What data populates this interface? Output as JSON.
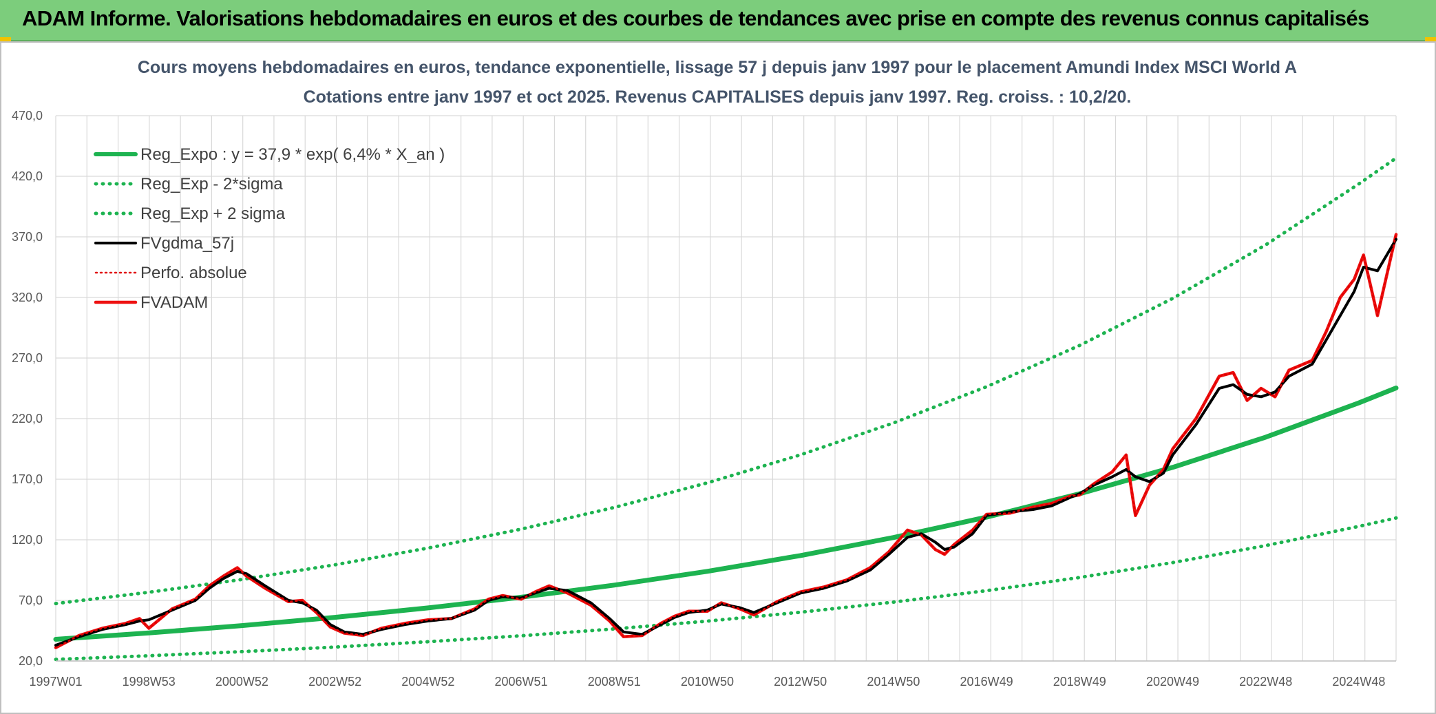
{
  "header": {
    "title": "ADAM Informe. Valorisations hebdomadaires en euros et des courbes de tendances avec prise en compte des revenus connus capitalisés"
  },
  "colors": {
    "header_bg": "#7ccd7c",
    "reg_expo": "#1db350",
    "sigma_bands": "#1db350",
    "fvgdma": "#000000",
    "perfo": "#e00000",
    "fvadam": "#ee1111",
    "grid": "#d9d9d9"
  },
  "chart_data": {
    "type": "line",
    "title": "Cours moyens hebdomadaires en euros, tendance exponentielle, lissage 57 j depuis janv 1997 pour le placement Amundi Index MSCI World A",
    "subtitle": "Cotations entre janv 1997 et oct 2025. Revenus CAPITALISES depuis janv 1997. Reg. croiss. : 10,2/20.",
    "xlabel": "",
    "ylabel": "",
    "ylim": [
      20,
      470
    ],
    "y_ticks": [
      "20,0",
      "70,0",
      "120,0",
      "170,0",
      "220,0",
      "270,0",
      "320,0",
      "370,0",
      "420,0",
      "470,0"
    ],
    "x_range": [
      1997.0,
      2025.8
    ],
    "x_ticks": [
      {
        "label": "1997W01",
        "x": 1997.0
      },
      {
        "label": "1998W53",
        "x": 1999.0
      },
      {
        "label": "2000W52",
        "x": 2001.0
      },
      {
        "label": "2002W52",
        "x": 2003.0
      },
      {
        "label": "2004W52",
        "x": 2005.0
      },
      {
        "label": "2006W51",
        "x": 2007.0
      },
      {
        "label": "2008W51",
        "x": 2009.0
      },
      {
        "label": "2010W50",
        "x": 2011.0
      },
      {
        "label": "2012W50",
        "x": 2013.0
      },
      {
        "label": "2014W50",
        "x": 2015.0
      },
      {
        "label": "2016W49",
        "x": 2017.0
      },
      {
        "label": "2018W49",
        "x": 2019.0
      },
      {
        "label": "2020W49",
        "x": 2021.0
      },
      {
        "label": "2022W48",
        "x": 2023.0
      },
      {
        "label": "2024W48",
        "x": 2025.0
      }
    ],
    "grid": true,
    "legend_position": "top-left",
    "legend": [
      "Reg_Expo : y = 37,9 * exp( 6,4% *  X_an )",
      "Reg_Exp - 2*sigma",
      "Reg_Exp + 2 sigma",
      "FVgdma_57j",
      "Perfo. absolue",
      "FVADAM"
    ],
    "series": [
      {
        "name": "Reg_Expo : y = 37,9 * exp( 6,4% *  X_an )",
        "style": "solid-thick",
        "x": [
          1997,
          1999,
          2001,
          2003,
          2005,
          2007,
          2009,
          2011,
          2013,
          2015,
          2017,
          2019,
          2021,
          2023,
          2025,
          2025.8
        ],
        "values": [
          37.9,
          43.1,
          49.2,
          56.0,
          63.8,
          72.6,
          82.6,
          94.0,
          107.0,
          121.9,
          138.7,
          158.0,
          179.8,
          204.7,
          233.0,
          245.3
        ]
      },
      {
        "name": "Reg_Exp - 2*sigma",
        "style": "dotted",
        "x": [
          1997,
          1999,
          2001,
          2003,
          2005,
          2007,
          2009,
          2011,
          2013,
          2015,
          2017,
          2019,
          2021,
          2023,
          2025,
          2025.8
        ],
        "values": [
          21.3,
          24.3,
          27.7,
          31.5,
          35.9,
          40.8,
          46.5,
          52.9,
          60.2,
          68.6,
          78.0,
          88.9,
          101.2,
          115.2,
          131.1,
          138.0
        ]
      },
      {
        "name": "Reg_Exp + 2 sigma",
        "style": "dotted",
        "x": [
          1997,
          1999,
          2001,
          2003,
          2005,
          2007,
          2009,
          2011,
          2013,
          2015,
          2017,
          2019,
          2021,
          2023,
          2025,
          2025.8
        ],
        "values": [
          67.4,
          76.7,
          87.3,
          99.4,
          113.2,
          128.8,
          146.7,
          167.0,
          190.1,
          216.4,
          246.3,
          280.4,
          319.2,
          363.4,
          413.7,
          435.0
        ]
      },
      {
        "name": "FVgdma_57j",
        "style": "solid",
        "x": [
          1997.0,
          1997.5,
          1998.0,
          1998.5,
          1998.8,
          1999.0,
          1999.5,
          2000.0,
          2000.3,
          2000.6,
          2000.9,
          2001.1,
          2001.5,
          2002.0,
          2002.3,
          2002.6,
          2002.9,
          2003.2,
          2003.6,
          2004.0,
          2004.5,
          2005.0,
          2005.5,
          2006.0,
          2006.3,
          2006.6,
          2007.0,
          2007.3,
          2007.6,
          2008.0,
          2008.5,
          2008.9,
          2009.2,
          2009.6,
          2010.0,
          2010.3,
          2010.6,
          2011.0,
          2011.3,
          2011.7,
          2012.0,
          2012.5,
          2013.0,
          2013.5,
          2014.0,
          2014.5,
          2014.9,
          2015.3,
          2015.6,
          2015.9,
          2016.1,
          2016.3,
          2016.7,
          2017.0,
          2017.5,
          2018.0,
          2018.4,
          2018.8,
          2019.0,
          2019.3,
          2019.7,
          2020.0,
          2020.2,
          2020.5,
          2020.8,
          2021.0,
          2021.5,
          2022.0,
          2022.3,
          2022.6,
          2022.9,
          2023.2,
          2023.5,
          2024.0,
          2024.3,
          2024.6,
          2024.9,
          2025.1,
          2025.4,
          2025.8
        ],
        "values": [
          33,
          40,
          46,
          50,
          53,
          54,
          62,
          70,
          80,
          88,
          94,
          92,
          82,
          70,
          68,
          62,
          50,
          44,
          42,
          46,
          50,
          53,
          55,
          62,
          70,
          73,
          72,
          76,
          80,
          78,
          68,
          55,
          44,
          42,
          50,
          56,
          60,
          62,
          67,
          64,
          60,
          68,
          76,
          80,
          86,
          95,
          108,
          122,
          125,
          118,
          112,
          114,
          125,
          140,
          143,
          145,
          148,
          155,
          158,
          165,
          172,
          178,
          172,
          168,
          175,
          190,
          215,
          245,
          248,
          240,
          238,
          242,
          255,
          265,
          285,
          305,
          325,
          345,
          342,
          368
        ]
      },
      {
        "name": "Perfo. absolue",
        "style": "dotted",
        "x": [
          1997.0,
          1997.5,
          1998.0,
          1998.5,
          1998.8,
          1999.0,
          1999.5,
          2000.0,
          2000.3,
          2000.6,
          2000.9,
          2001.1,
          2001.5,
          2002.0,
          2002.3,
          2002.6,
          2002.9,
          2003.2,
          2003.6,
          2004.0,
          2004.5,
          2005.0,
          2005.5,
          2006.0,
          2006.3,
          2006.6,
          2007.0,
          2007.3,
          2007.6,
          2008.0,
          2008.5,
          2008.9,
          2009.2,
          2009.6,
          2010.0,
          2010.3,
          2010.6,
          2011.0,
          2011.3,
          2011.7,
          2012.0,
          2012.5,
          2013.0,
          2013.5,
          2014.0,
          2014.5,
          2014.9,
          2015.3,
          2015.6,
          2015.9,
          2016.1,
          2016.3,
          2016.7,
          2017.0,
          2017.5,
          2018.0,
          2018.4,
          2018.8,
          2019.0,
          2019.3,
          2019.7,
          2020.0,
          2020.2,
          2020.5,
          2020.8,
          2021.0,
          2021.5,
          2022.0,
          2022.3,
          2022.6,
          2022.9,
          2023.2,
          2023.5,
          2024.0,
          2024.3,
          2024.6,
          2024.9,
          2025.1,
          2025.4,
          2025.8
        ],
        "values": [
          31,
          41,
          47,
          51,
          55,
          47,
          63,
          71,
          82,
          90,
          97,
          90,
          80,
          69,
          70,
          60,
          48,
          43,
          41,
          47,
          51,
          54,
          55,
          63,
          71,
          74,
          71,
          77,
          82,
          76,
          66,
          53,
          40,
          41,
          51,
          57,
          61,
          61,
          68,
          63,
          58,
          69,
          77,
          81,
          87,
          97,
          110,
          128,
          124,
          112,
          108,
          116,
          128,
          141,
          142,
          147,
          150,
          156,
          157,
          166,
          176,
          190,
          140,
          165,
          178,
          195,
          220,
          255,
          258,
          235,
          245,
          238,
          260,
          268,
          292,
          320,
          335,
          355,
          305,
          372
        ]
      },
      {
        "name": "FVADAM",
        "style": "solid-thick",
        "x": [
          1997.0,
          1997.5,
          1998.0,
          1998.5,
          1998.8,
          1999.0,
          1999.5,
          2000.0,
          2000.3,
          2000.6,
          2000.9,
          2001.1,
          2001.5,
          2002.0,
          2002.3,
          2002.6,
          2002.9,
          2003.2,
          2003.6,
          2004.0,
          2004.5,
          2005.0,
          2005.5,
          2006.0,
          2006.3,
          2006.6,
          2007.0,
          2007.3,
          2007.6,
          2008.0,
          2008.5,
          2008.9,
          2009.2,
          2009.6,
          2010.0,
          2010.3,
          2010.6,
          2011.0,
          2011.3,
          2011.7,
          2012.0,
          2012.5,
          2013.0,
          2013.5,
          2014.0,
          2014.5,
          2014.9,
          2015.3,
          2015.6,
          2015.9,
          2016.1,
          2016.3,
          2016.7,
          2017.0,
          2017.5,
          2018.0,
          2018.4,
          2018.8,
          2019.0,
          2019.3,
          2019.7,
          2020.0,
          2020.2,
          2020.5,
          2020.8,
          2021.0,
          2021.5,
          2022.0,
          2022.3,
          2022.6,
          2022.9,
          2023.2,
          2023.5,
          2024.0,
          2024.3,
          2024.6,
          2024.9,
          2025.1,
          2025.4,
          2025.8
        ],
        "values": [
          31,
          41,
          47,
          51,
          55,
          47,
          63,
          71,
          82,
          90,
          97,
          90,
          80,
          69,
          70,
          60,
          48,
          43,
          41,
          47,
          51,
          54,
          55,
          63,
          71,
          74,
          71,
          77,
          82,
          76,
          66,
          53,
          40,
          41,
          51,
          57,
          61,
          61,
          68,
          63,
          58,
          69,
          77,
          81,
          87,
          97,
          110,
          128,
          124,
          112,
          108,
          116,
          128,
          141,
          142,
          147,
          150,
          156,
          157,
          166,
          176,
          190,
          140,
          165,
          178,
          195,
          220,
          255,
          258,
          235,
          245,
          238,
          260,
          268,
          292,
          320,
          335,
          355,
          305,
          372
        ]
      }
    ]
  }
}
